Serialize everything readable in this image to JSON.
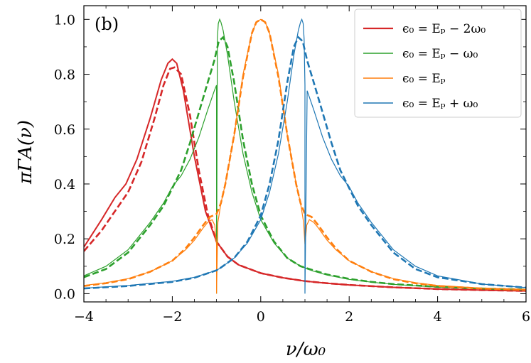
{
  "chart_data": {
    "type": "line",
    "panel_label": "(b)",
    "xlabel": "ν/ω₀",
    "ylabel": "πΓA(ν)",
    "xlim": [
      -4,
      6
    ],
    "ylim": [
      -0.03,
      1.05
    ],
    "x_ticks": [
      -4,
      -2,
      0,
      2,
      4,
      6
    ],
    "x_tick_labels": [
      "−4",
      "−2",
      "0",
      "2",
      "4",
      "6"
    ],
    "y_ticks": [
      0.0,
      0.2,
      0.4,
      0.6,
      0.8,
      1.0
    ],
    "y_tick_labels": [
      "0.0",
      "0.2",
      "0.4",
      "0.6",
      "0.8",
      "1.0"
    ],
    "legend_position": "top-right",
    "series": [
      {
        "name": "ϵ₀ = Eₚ − 2ω₀",
        "color": "#d62728",
        "solid": {
          "x": [
            -4,
            -3.6,
            -3.3,
            -3.05,
            -2.8,
            -2.5,
            -2.25,
            -2.1,
            -2.0,
            -1.9,
            -1.75,
            -1.5,
            -1.25,
            -1.0,
            -0.75,
            -0.5,
            0,
            0.5,
            1,
            1.5,
            2,
            3,
            4,
            5,
            6
          ],
          "y": [
            0.17,
            0.27,
            0.35,
            0.4,
            0.49,
            0.64,
            0.78,
            0.84,
            0.855,
            0.84,
            0.74,
            0.5,
            0.3,
            0.19,
            0.135,
            0.105,
            0.075,
            0.058,
            0.046,
            0.038,
            0.032,
            0.023,
            0.017,
            0.013,
            0.01
          ]
        },
        "dashed": {
          "x": [
            -4,
            -3.6,
            -3.3,
            -3.0,
            -2.7,
            -2.4,
            -2.2,
            -2.05,
            -1.95,
            -1.8,
            -1.6,
            -1.4,
            -1.2,
            -1.0,
            -0.75,
            -0.5,
            0,
            0.5,
            1,
            1.5,
            2,
            3,
            4,
            5,
            6
          ],
          "y": [
            0.155,
            0.23,
            0.3,
            0.37,
            0.48,
            0.64,
            0.76,
            0.82,
            0.825,
            0.8,
            0.65,
            0.45,
            0.29,
            0.19,
            0.135,
            0.105,
            0.075,
            0.058,
            0.046,
            0.038,
            0.032,
            0.023,
            0.017,
            0.013,
            0.01
          ]
        }
      },
      {
        "name": "ϵ₀ = Eₚ − ω₀",
        "color": "#2ca02c",
        "solid": {
          "x": [
            -4,
            -3.5,
            -3.0,
            -2.5,
            -2.2,
            -2.0,
            -1.8,
            -1.6,
            -1.4,
            -1.2,
            -1.05,
            -1.0,
            -1.0,
            -0.98,
            -0.96,
            -0.93,
            -0.9,
            -0.85,
            -0.75,
            -0.6,
            -0.4,
            -0.2,
            0,
            0.3,
            0.6,
            0.9,
            1.0,
            1.05,
            1.2,
            1.5,
            2,
            2.5,
            3,
            4,
            5,
            6
          ],
          "y": [
            0.065,
            0.1,
            0.16,
            0.26,
            0.33,
            0.39,
            0.43,
            0.49,
            0.57,
            0.67,
            0.74,
            0.76,
            0.0,
            0.93,
            0.985,
            1.0,
            0.99,
            0.96,
            0.87,
            0.7,
            0.51,
            0.37,
            0.27,
            0.185,
            0.13,
            0.1,
            0.095,
            0.09,
            0.082,
            0.068,
            0.052,
            0.042,
            0.034,
            0.024,
            0.018,
            0.014
          ]
        },
        "dashed": {
          "x": [
            -4,
            -3.5,
            -3.0,
            -2.5,
            -2.2,
            -2.0,
            -1.8,
            -1.6,
            -1.4,
            -1.2,
            -1.05,
            -0.95,
            -0.85,
            -0.75,
            -0.6,
            -0.4,
            -0.2,
            0,
            0.3,
            0.6,
            0.9,
            1.0,
            1.1,
            1.5,
            2,
            2.5,
            3,
            4,
            5,
            6
          ],
          "y": [
            0.06,
            0.09,
            0.15,
            0.25,
            0.32,
            0.385,
            0.45,
            0.55,
            0.66,
            0.77,
            0.85,
            0.92,
            0.935,
            0.9,
            0.77,
            0.56,
            0.4,
            0.285,
            0.19,
            0.13,
            0.1,
            0.095,
            0.09,
            0.07,
            0.054,
            0.043,
            0.035,
            0.025,
            0.019,
            0.015
          ]
        }
      },
      {
        "name": "ϵ₀ = Eₚ",
        "color": "#ff7f0e",
        "solid": {
          "x": [
            -4,
            -3.5,
            -3.0,
            -2.5,
            -2.0,
            -1.7,
            -1.5,
            -1.3,
            -1.2,
            -1.1,
            -1.04,
            -1.0,
            -1.0,
            -0.97,
            -0.9,
            -0.8,
            -0.6,
            -0.4,
            -0.2,
            -0.1,
            0,
            0.1,
            0.2,
            0.4,
            0.6,
            0.8,
            0.9,
            0.97,
            1.0,
            1.0,
            1.04,
            1.1,
            1.2,
            1.3,
            1.5,
            1.7,
            2.0,
            2.5,
            3.0,
            3.5,
            4.0,
            5.0,
            6.0
          ],
          "y": [
            0.03,
            0.04,
            0.055,
            0.08,
            0.12,
            0.16,
            0.195,
            0.24,
            0.26,
            0.27,
            0.25,
            0.18,
            0.0,
            0.26,
            0.33,
            0.4,
            0.58,
            0.8,
            0.95,
            0.99,
            1.0,
            0.99,
            0.95,
            0.8,
            0.58,
            0.4,
            0.33,
            0.26,
            0.18,
            0.18,
            0.25,
            0.27,
            0.26,
            0.24,
            0.195,
            0.16,
            0.12,
            0.08,
            0.055,
            0.04,
            0.03,
            0.02,
            0.015
          ]
        },
        "dashed": {
          "x": [
            -4,
            -3.5,
            -3.0,
            -2.5,
            -2.0,
            -1.7,
            -1.5,
            -1.3,
            -1.15,
            -1.0,
            -0.9,
            -0.8,
            -0.6,
            -0.4,
            -0.2,
            -0.1,
            0,
            0.1,
            0.2,
            0.4,
            0.6,
            0.8,
            0.9,
            1.0,
            1.15,
            1.3,
            1.5,
            1.7,
            2.0,
            2.5,
            3.0,
            3.5,
            4.0,
            5.0,
            6.0
          ],
          "y": [
            0.028,
            0.038,
            0.053,
            0.08,
            0.12,
            0.165,
            0.205,
            0.25,
            0.28,
            0.29,
            0.33,
            0.4,
            0.58,
            0.79,
            0.95,
            0.99,
            1.0,
            0.99,
            0.95,
            0.79,
            0.58,
            0.4,
            0.33,
            0.29,
            0.28,
            0.25,
            0.205,
            0.165,
            0.12,
            0.08,
            0.053,
            0.038,
            0.028,
            0.019,
            0.014
          ]
        }
      },
      {
        "name": "ϵ₀ = Eₚ + ω₀",
        "color": "#1f77b4",
        "solid": {
          "x": [
            -4,
            -3,
            -2,
            -1.5,
            -1.0,
            -0.9,
            -0.6,
            -0.3,
            0,
            0.2,
            0.4,
            0.6,
            0.75,
            0.85,
            0.9,
            0.93,
            0.96,
            0.98,
            1.0,
            1.0,
            1.05,
            1.2,
            1.4,
            1.6,
            1.8,
            2.0,
            2.2,
            2.5,
            3.0,
            3.5,
            4.0,
            5.0,
            6.0
          ],
          "y": [
            0.02,
            0.03,
            0.045,
            0.06,
            0.085,
            0.095,
            0.13,
            0.185,
            0.27,
            0.37,
            0.51,
            0.7,
            0.87,
            0.96,
            0.99,
            1.0,
            0.985,
            0.93,
            0.76,
            0.0,
            0.74,
            0.67,
            0.57,
            0.49,
            0.43,
            0.39,
            0.33,
            0.26,
            0.16,
            0.1,
            0.065,
            0.035,
            0.022
          ]
        },
        "dashed": {
          "x": [
            -4,
            -3,
            -2,
            -1.5,
            -1.0,
            -0.9,
            -0.6,
            -0.3,
            0,
            0.2,
            0.4,
            0.6,
            0.75,
            0.85,
            0.95,
            1.05,
            1.2,
            1.4,
            1.6,
            1.8,
            2.0,
            2.2,
            2.5,
            3.0,
            3.5,
            4.0,
            5.0,
            6.0
          ],
          "y": [
            0.019,
            0.028,
            0.043,
            0.058,
            0.085,
            0.095,
            0.13,
            0.19,
            0.285,
            0.4,
            0.56,
            0.77,
            0.9,
            0.935,
            0.92,
            0.85,
            0.77,
            0.66,
            0.55,
            0.45,
            0.385,
            0.32,
            0.25,
            0.15,
            0.09,
            0.06,
            0.035,
            0.022
          ]
        }
      }
    ]
  }
}
